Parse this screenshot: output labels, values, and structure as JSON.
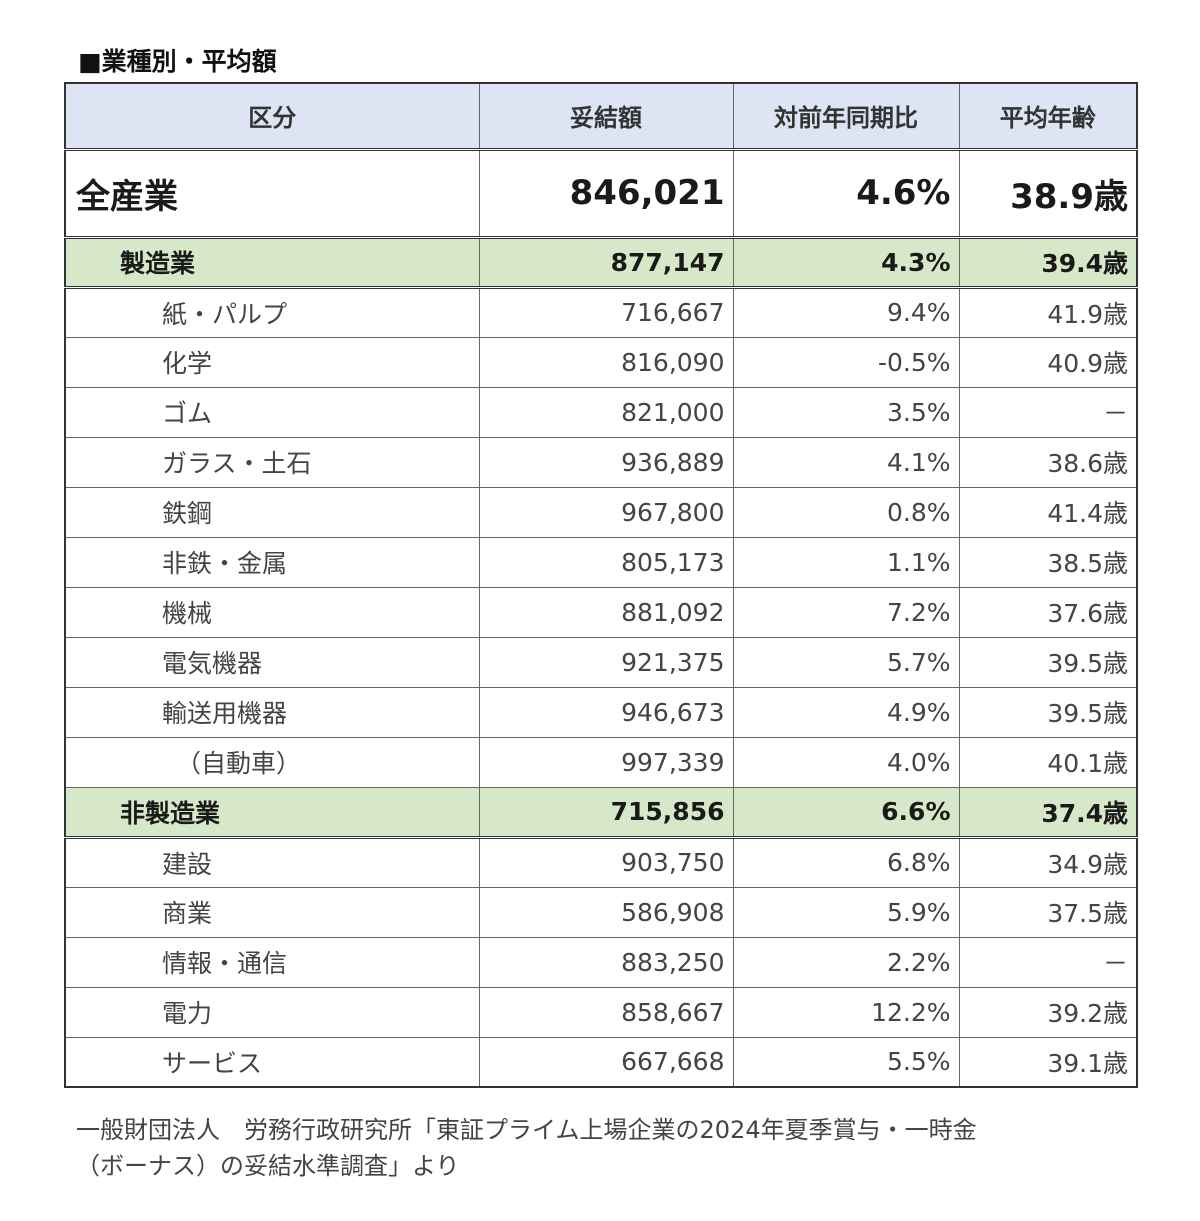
{
  "title": "■業種別・平均額",
  "chart_data": {
    "type": "table",
    "columns": [
      "区分",
      "妥結額",
      "対前年同期比",
      "平均年齢"
    ],
    "rows": [
      {
        "level": "total",
        "label": "全産業",
        "amount": "846,021",
        "yoy": "4.6%",
        "age": "38.9歳"
      },
      {
        "level": "group",
        "label": "製造業",
        "amount": "877,147",
        "yoy": "4.3%",
        "age": "39.4歳"
      },
      {
        "level": "item",
        "label": "紙・パルプ",
        "amount": "716,667",
        "yoy": "9.4%",
        "age": "41.9歳"
      },
      {
        "level": "item",
        "label": "化学",
        "amount": "816,090",
        "yoy": "-0.5%",
        "age": "40.9歳"
      },
      {
        "level": "item",
        "label": "ゴム",
        "amount": "821,000",
        "yoy": "3.5%",
        "age": "－"
      },
      {
        "level": "item",
        "label": "ガラス・土石",
        "amount": "936,889",
        "yoy": "4.1%",
        "age": "38.6歳"
      },
      {
        "level": "item",
        "label": "鉄鋼",
        "amount": "967,800",
        "yoy": "0.8%",
        "age": "41.4歳"
      },
      {
        "level": "item",
        "label": "非鉄・金属",
        "amount": "805,173",
        "yoy": "1.1%",
        "age": "38.5歳"
      },
      {
        "level": "item",
        "label": "機械",
        "amount": "881,092",
        "yoy": "7.2%",
        "age": "37.6歳"
      },
      {
        "level": "item",
        "label": "電気機器",
        "amount": "921,375",
        "yoy": "5.7%",
        "age": "39.5歳"
      },
      {
        "level": "item",
        "label": "輸送用機器",
        "amount": "946,673",
        "yoy": "4.9%",
        "age": "39.5歳"
      },
      {
        "level": "item",
        "sub": true,
        "label": "（自動車）",
        "amount": "997,339",
        "yoy": "4.0%",
        "age": "40.1歳"
      },
      {
        "level": "group",
        "label": "非製造業",
        "amount": "715,856",
        "yoy": "6.6%",
        "age": "37.4歳"
      },
      {
        "level": "item",
        "label": "建設",
        "amount": "903,750",
        "yoy": "6.8%",
        "age": "34.9歳"
      },
      {
        "level": "item",
        "label": "商業",
        "amount": "586,908",
        "yoy": "5.9%",
        "age": "37.5歳"
      },
      {
        "level": "item",
        "label": "情報・通信",
        "amount": "883,250",
        "yoy": "2.2%",
        "age": "－"
      },
      {
        "level": "item",
        "label": "電力",
        "amount": "858,667",
        "yoy": "12.2%",
        "age": "39.2歳"
      },
      {
        "level": "item",
        "label": "サービス",
        "amount": "667,668",
        "yoy": "5.5%",
        "age": "39.1歳"
      }
    ]
  },
  "colors": {
    "header_bg": "#dde4f4",
    "group_bg": "#d7e8c8",
    "negative": "#e0303a",
    "border": "#666666"
  },
  "source_note_line1": "一般財団法人　労務行政研究所「東証プライム上場企業の2024年夏季賞与・一時金",
  "source_note_line2": "（ボーナス）の妥結水準調査」より"
}
